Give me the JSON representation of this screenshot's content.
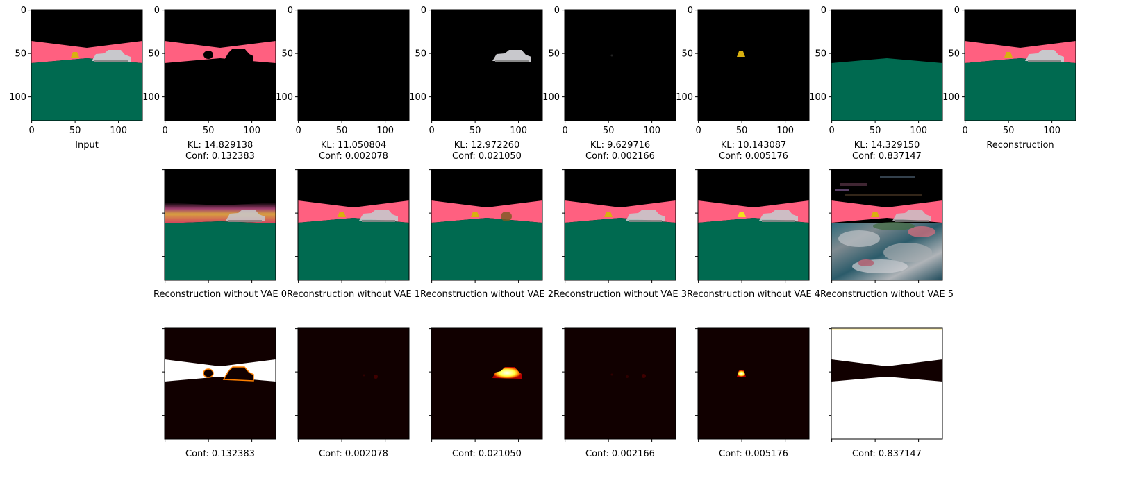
{
  "figure": {
    "input_title": "Input",
    "reconstruction_title": "Reconstruction",
    "ticks": {
      "x": [
        "0",
        "50",
        "100"
      ],
      "y": [
        "0",
        "50",
        "100"
      ]
    },
    "components": [
      {
        "kl": "KL: 14.829138",
        "conf": "Conf: 0.132383",
        "recon_without": "Reconstruction without VAE 0"
      },
      {
        "kl": "KL: 11.050804",
        "conf": "Conf: 0.002078",
        "recon_without": "Reconstruction without VAE 1"
      },
      {
        "kl": "KL: 12.972260",
        "conf": "Conf: 0.021050",
        "recon_without": "Reconstruction without VAE 2"
      },
      {
        "kl": "KL: 9.629716",
        "conf": "Conf: 0.002166",
        "recon_without": "Reconstruction without VAE 3"
      },
      {
        "kl": "KL: 10.143087",
        "conf": "Conf: 0.005176",
        "recon_without": "Reconstruction without VAE 4"
      },
      {
        "kl": "KL: 14.329150",
        "conf": "Conf: 0.837147",
        "recon_without": "Reconstruction without VAE 5"
      }
    ]
  },
  "colors": {
    "sky": "#000000",
    "wall": "#ff6080",
    "floor": "#006a50",
    "object_yellow": "#d8b010",
    "object_car": "#c8c8cc",
    "mask_bg": "#110000",
    "mask_high": "#ffffff"
  }
}
